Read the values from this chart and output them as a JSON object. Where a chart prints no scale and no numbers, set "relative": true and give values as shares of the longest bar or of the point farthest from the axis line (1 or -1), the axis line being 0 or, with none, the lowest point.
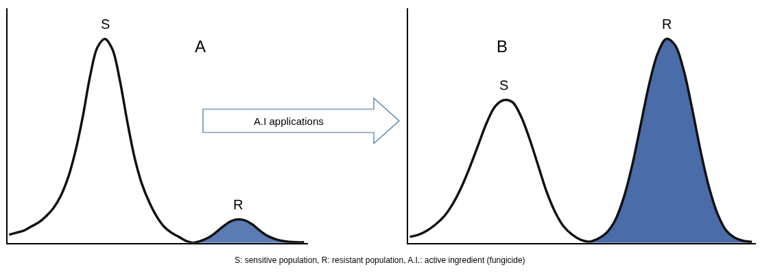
{
  "chart_data": [
    {
      "type": "area",
      "relative": true,
      "legend": false,
      "categories": [
        null,
        null,
        null,
        null,
        null,
        null,
        null,
        null,
        null,
        null,
        null,
        null,
        null,
        null,
        null,
        null,
        null,
        null,
        null,
        null,
        null,
        null,
        null,
        null,
        null,
        null,
        null,
        null,
        null,
        null,
        null,
        null,
        null,
        null,
        null,
        null,
        null,
        null,
        null,
        null,
        null
      ],
      "series": [
        {
          "name": "S",
          "type": "line",
          "color": "#111111",
          "values": [
            0.04,
            0.05,
            0.06,
            0.08,
            0.1,
            0.13,
            0.17,
            0.23,
            0.32,
            0.45,
            0.62,
            0.82,
            0.96,
            1.0,
            0.95,
            0.8,
            0.6,
            0.42,
            0.29,
            0.2,
            0.13,
            0.08,
            0.05,
            0.03,
            0.01,
            0.0,
            null,
            null,
            null,
            null,
            null,
            null,
            null,
            null,
            null,
            null,
            null,
            null,
            null,
            null,
            null
          ]
        },
        {
          "name": "R",
          "color": "#5a7cb3",
          "values": [
            null,
            null,
            null,
            null,
            null,
            null,
            null,
            null,
            null,
            null,
            null,
            null,
            null,
            null,
            null,
            null,
            null,
            null,
            null,
            null,
            null,
            null,
            null,
            null,
            null,
            0.0,
            0.01,
            0.025,
            0.05,
            0.08,
            0.105,
            0.115,
            0.11,
            0.09,
            0.06,
            0.035,
            0.02,
            0.01,
            0.005,
            0.003,
            0.003
          ]
        }
      ],
      "annotations": [
        "A",
        "A.I applications",
        "S: sensitive population, R: resistant population, A.I.: active ingredient (fungicide)"
      ]
    },
    {
      "type": "area",
      "relative": true,
      "legend": false,
      "categories": [
        null,
        null,
        null,
        null,
        null,
        null,
        null,
        null,
        null,
        null,
        null,
        null,
        null,
        null,
        null,
        null,
        null,
        null,
        null,
        null,
        null,
        null,
        null,
        null,
        null,
        null,
        null,
        null,
        null,
        null,
        null,
        null,
        null,
        null,
        null,
        null,
        null,
        null,
        null,
        null,
        null
      ],
      "series": [
        {
          "name": "S",
          "type": "line",
          "color": "#111111",
          "values": [
            0.03,
            0.04,
            0.06,
            0.09,
            0.13,
            0.19,
            0.27,
            0.37,
            0.48,
            0.59,
            0.67,
            0.7,
            0.69,
            0.62,
            0.51,
            0.38,
            0.25,
            0.15,
            0.08,
            0.04,
            0.015,
            0.005,
            null,
            null,
            null,
            null,
            null,
            null,
            null,
            null,
            null,
            null,
            null,
            null,
            null,
            null,
            null,
            null,
            null,
            null,
            null
          ]
        },
        {
          "name": "R",
          "color": "#4a6ca8",
          "values": [
            null,
            null,
            null,
            null,
            null,
            null,
            null,
            null,
            null,
            null,
            null,
            null,
            null,
            null,
            null,
            null,
            null,
            null,
            null,
            null,
            null,
            0.005,
            0.02,
            0.05,
            0.11,
            0.22,
            0.38,
            0.58,
            0.78,
            0.93,
            1.0,
            0.97,
            0.85,
            0.66,
            0.45,
            0.27,
            0.14,
            0.06,
            0.025,
            0.01,
            0.005
          ]
        }
      ],
      "annotations": [
        "B"
      ]
    }
  ]
}
